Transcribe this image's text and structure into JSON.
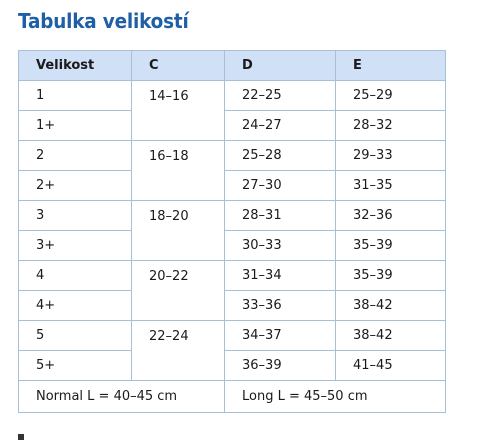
{
  "title": "Tabulka velikostí",
  "table": {
    "headers": [
      "Velikost",
      "C",
      "D",
      "E"
    ],
    "groups": [
      {
        "c": "14–16",
        "rows": [
          {
            "size": "1",
            "d": "22–25",
            "e": "25–29"
          },
          {
            "size": "1+",
            "d": "24–27",
            "e": "28–32"
          }
        ]
      },
      {
        "c": "16–18",
        "rows": [
          {
            "size": "2",
            "d": "25–28",
            "e": "29–33"
          },
          {
            "size": "2+",
            "d": "27–30",
            "e": "31–35"
          }
        ]
      },
      {
        "c": "18–20",
        "rows": [
          {
            "size": "3",
            "d": "28–31",
            "e": "32–36"
          },
          {
            "size": "3+",
            "d": "30–33",
            "e": "35–39"
          }
        ]
      },
      {
        "c": "20–22",
        "rows": [
          {
            "size": "4",
            "d": "31–34",
            "e": "35–39"
          },
          {
            "size": "4+",
            "d": "33–36",
            "e": "38–42"
          }
        ]
      },
      {
        "c": "22–24",
        "rows": [
          {
            "size": "5",
            "d": "34–37",
            "e": "38–42"
          },
          {
            "size": "5+",
            "d": "36–39",
            "e": "41–45"
          }
        ]
      }
    ],
    "footer": {
      "normal": "Normal L = 40–45 cm",
      "long": "Long L = 45–50 cm"
    }
  }
}
